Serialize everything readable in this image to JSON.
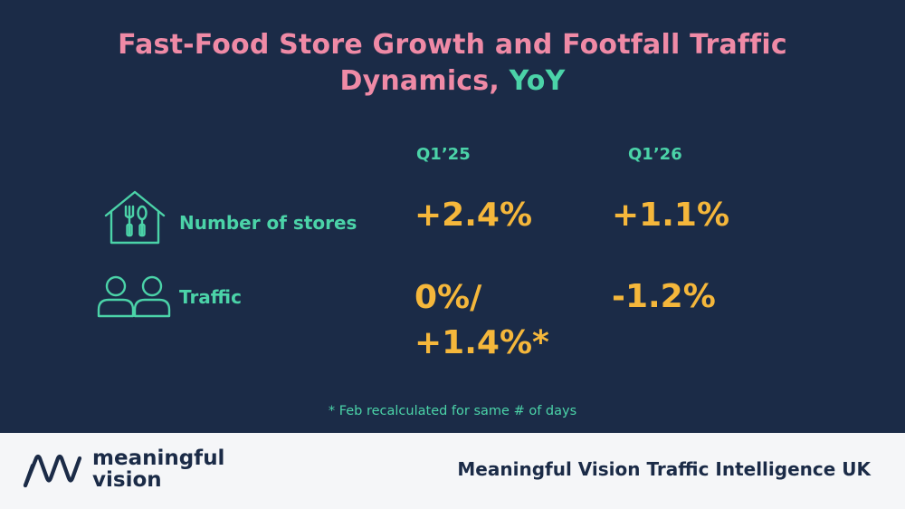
{
  "header": {
    "title_line1": "Fast-Food Store Growth and Footfall Traffic",
    "title_line2_main": "Dynamics, ",
    "title_line2_accent": "YoY"
  },
  "columns": [
    "Q1’25",
    "Q1’26"
  ],
  "rows": [
    {
      "label": "Number of stores",
      "icon": "store-house-icon",
      "values": [
        "+2.4%",
        "+1.1%"
      ]
    },
    {
      "label": "Traffic",
      "icon": "people-icon",
      "values": [
        "0%/\n+1.4%*",
        "-1.2%"
      ]
    }
  ],
  "footnote": "* Feb recalculated for same # of days",
  "footer": {
    "logo_line1": "meaningful",
    "logo_line2": "vision",
    "brand": "Meaningful Vision Traffic Intelligence UK"
  },
  "colors": {
    "background": "#1b2b47",
    "title_pink": "#ef8aa6",
    "accent_teal": "#4bd3a8",
    "value_orange": "#f5b73b",
    "footer_bg": "#f5f6f8"
  }
}
